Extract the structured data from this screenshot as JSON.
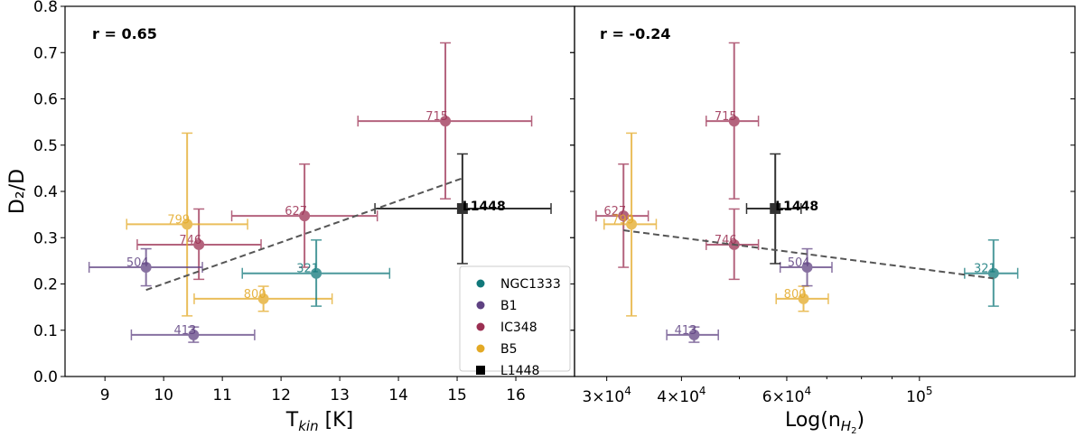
{
  "ylabel": "D₂/D",
  "colors": {
    "NGC1333": "#11787a",
    "B1": "#5f4282",
    "IC348": "#9b2f52",
    "B5": "#e3a925",
    "L1448": "#000000"
  },
  "legend": {
    "placement": "lower-right of left panel",
    "entries": [
      {
        "label": "NGC1333",
        "marker": "circle"
      },
      {
        "label": "B1",
        "marker": "circle"
      },
      {
        "label": "IC348",
        "marker": "circle"
      },
      {
        "label": "B5",
        "marker": "circle"
      },
      {
        "label": "L1448",
        "marker": "square"
      }
    ]
  },
  "chart_data": [
    {
      "type": "scatter",
      "annotation": "r = 0.65",
      "xlabel": "T_kin [K]",
      "xlabel_main": "T",
      "xlabel_sub": "kin",
      "xlabel_tail": " [K]",
      "ylabel": "D₂/D",
      "xscale": "linear",
      "xlim": [
        8.32,
        17.0
      ],
      "ylim": [
        0.0,
        0.8
      ],
      "xticks": [
        9,
        10,
        11,
        12,
        13,
        14,
        15,
        16
      ],
      "xtick_labels": [
        "9",
        "10",
        "11",
        "12",
        "13",
        "14",
        "15",
        "16"
      ],
      "yticks": [
        0.0,
        0.1,
        0.2,
        0.3,
        0.4,
        0.5,
        0.6,
        0.7,
        0.8
      ],
      "ytick_labels": [
        "0.0",
        "0.1",
        "0.2",
        "0.3",
        "0.4",
        "0.5",
        "0.6",
        "0.7",
        "0.8"
      ],
      "grid": false,
      "points": [
        {
          "label": "715",
          "group": "IC348",
          "x": 14.8,
          "y": 0.552,
          "xerr": [
            13.31,
            16.27
          ],
          "yerr": [
            0.384,
            0.721
          ]
        },
        {
          "label": "627",
          "group": "IC348",
          "x": 12.4,
          "y": 0.347,
          "xerr": [
            11.16,
            13.64
          ],
          "yerr": [
            0.236,
            0.459
          ]
        },
        {
          "label": "746",
          "group": "IC348",
          "x": 10.6,
          "y": 0.285,
          "xerr": [
            9.55,
            11.66
          ],
          "yerr": [
            0.21,
            0.362
          ]
        },
        {
          "label": "799",
          "group": "B5",
          "x": 10.4,
          "y": 0.329,
          "xerr": [
            9.37,
            11.43
          ],
          "yerr": [
            0.131,
            0.526
          ]
        },
        {
          "label": "800",
          "group": "B5",
          "x": 11.7,
          "y": 0.168,
          "xerr": [
            10.52,
            12.87
          ],
          "yerr": [
            0.141,
            0.195
          ]
        },
        {
          "label": "504",
          "group": "B1",
          "x": 9.7,
          "y": 0.236,
          "xerr": [
            8.73,
            10.66
          ],
          "yerr": [
            0.196,
            0.276
          ]
        },
        {
          "label": "413",
          "group": "B1",
          "x": 10.51,
          "y": 0.09,
          "xerr": [
            9.45,
            11.55
          ],
          "yerr": [
            0.074,
            0.107
          ]
        },
        {
          "label": "321",
          "group": "NGC1333",
          "x": 12.6,
          "y": 0.223,
          "xerr": [
            11.34,
            13.85
          ],
          "yerr": [
            0.152,
            0.295
          ]
        },
        {
          "label": "L1448",
          "group": "L1448",
          "x": 15.09,
          "y": 0.363,
          "xerr": [
            13.6,
            16.6
          ],
          "yerr": [
            0.244,
            0.481
          ]
        }
      ],
      "fit_line": {
        "x": [
          9.7,
          15.08
        ],
        "y": [
          0.187,
          0.428
        ],
        "style": "dashed"
      }
    },
    {
      "type": "scatter",
      "annotation": "r = -0.24",
      "xlabel": "Log(n_H2)",
      "xlabel_main": "Log(n",
      "xlabel_sub": "H",
      "xlabel_subsub": "2",
      "xlabel_tail": ")",
      "xscale": "log",
      "xlim": [
        26500,
        182000
      ],
      "ylim": [
        0.0,
        0.8
      ],
      "xticks": [
        30000,
        40000,
        60000,
        100000
      ],
      "xtick_labels": [
        {
          "mant": "3×10",
          "exp": "4"
        },
        {
          "mant": "4×10",
          "exp": "4"
        },
        {
          "mant": "6×10",
          "exp": "4"
        },
        {
          "mant": "10",
          "exp": "5"
        }
      ],
      "minor_xticks": [
        50000,
        70000,
        80000,
        90000
      ],
      "grid": false,
      "points": [
        {
          "label": "715",
          "group": "IC348",
          "x": 49000,
          "y": 0.552,
          "xerr": [
            44000,
            53800
          ],
          "yerr": [
            0.384,
            0.721
          ]
        },
        {
          "label": "627",
          "group": "IC348",
          "x": 32000,
          "y": 0.347,
          "xerr": [
            28800,
            35200
          ],
          "yerr": [
            0.236,
            0.459
          ]
        },
        {
          "label": "746",
          "group": "IC348",
          "x": 49000,
          "y": 0.285,
          "xerr": [
            44000,
            53800
          ],
          "yerr": [
            0.21,
            0.362
          ]
        },
        {
          "label": "799",
          "group": "B5",
          "x": 33000,
          "y": 0.329,
          "xerr": [
            29700,
            36300
          ],
          "yerr": [
            0.131,
            0.526
          ]
        },
        {
          "label": "800",
          "group": "B5",
          "x": 64000,
          "y": 0.168,
          "xerr": [
            57600,
            70400
          ],
          "yerr": [
            0.141,
            0.195
          ]
        },
        {
          "label": "504",
          "group": "B1",
          "x": 64900,
          "y": 0.236,
          "xerr": [
            58500,
            71400
          ],
          "yerr": [
            0.196,
            0.276
          ]
        },
        {
          "label": "413",
          "group": "B1",
          "x": 42000,
          "y": 0.09,
          "xerr": [
            37800,
            46100
          ],
          "yerr": [
            0.074,
            0.107
          ]
        },
        {
          "label": "321",
          "group": "NGC1333",
          "x": 133000,
          "y": 0.223,
          "xerr": [
            119000,
            146000
          ],
          "yerr": [
            0.152,
            0.295
          ]
        },
        {
          "label": "L1448",
          "group": "L1448",
          "x": 57400,
          "y": 0.363,
          "xerr": [
            51400,
            63400
          ],
          "yerr": [
            0.244,
            0.481
          ]
        }
      ],
      "fit_line": {
        "x": [
          32000,
          133000
        ],
        "y": [
          0.316,
          0.212
        ],
        "style": "dashed"
      }
    }
  ]
}
